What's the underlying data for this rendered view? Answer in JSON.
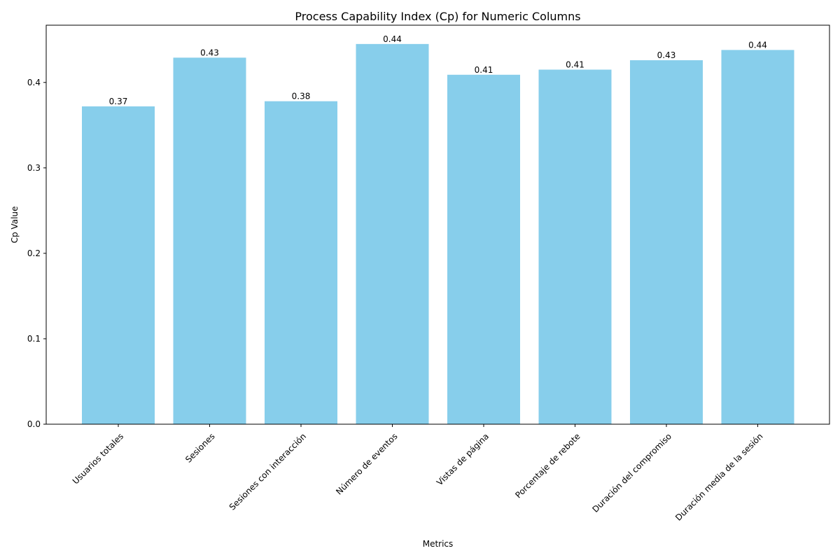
{
  "chart_data": {
    "type": "bar",
    "title": "Process Capability Index (Cp) for Numeric Columns",
    "xlabel": "Metrics",
    "ylabel": "Cp Value",
    "categories": [
      "Usuarios totales",
      "Sesiones",
      "Sesiones con interacción",
      "Número de eventos",
      "Vistas de página",
      "Porcentaje de rebote",
      "Duración del compromiso",
      "Duración media de la sesión"
    ],
    "values": [
      0.372,
      0.429,
      0.378,
      0.445,
      0.409,
      0.415,
      0.426,
      0.438
    ],
    "data_labels": [
      "0.37",
      "0.43",
      "0.38",
      "0.44",
      "0.41",
      "0.41",
      "0.43",
      "0.44"
    ],
    "yticks": [
      0.0,
      0.1,
      0.2,
      0.3,
      0.4
    ],
    "ytick_labels": [
      "0.0",
      "0.1",
      "0.2",
      "0.3",
      "0.4"
    ],
    "ylim": [
      0,
      0.467
    ],
    "grid": false,
    "legend": "none",
    "colors": {
      "bar": "#87CEEB",
      "axis": "#000000"
    }
  }
}
